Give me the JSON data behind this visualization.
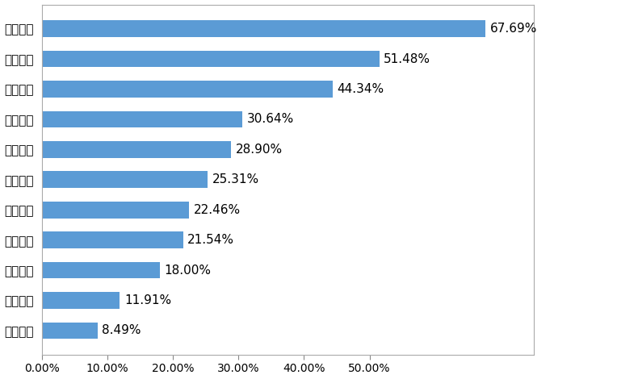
{
  "categories": [
    "法律援助",
    "應急救援",
    "纠纷协调",
    "维护权益",
    "价格指导",
    "困难帮扶",
    "安全教育",
    "事故救济",
    "公益体检",
    "子女就学",
    "就业培训"
  ],
  "values": [
    0.6769,
    0.5148,
    0.4434,
    0.3064,
    0.289,
    0.2531,
    0.2246,
    0.2154,
    0.18,
    0.1191,
    0.0849
  ],
  "labels": [
    "67.69%",
    "51.48%",
    "44.34%",
    "30.64%",
    "28.90%",
    "25.31%",
    "22.46%",
    "21.54%",
    "18.00%",
    "11.91%",
    "8.49%"
  ],
  "bar_color": "#5B9BD5",
  "background_color": "#FFFFFF",
  "xlim": [
    0,
    0.75
  ],
  "xticks": [
    0.0,
    0.1,
    0.2,
    0.3,
    0.4,
    0.5
  ],
  "xtick_labels": [
    "0.00%",
    "10.00%",
    "20.00%",
    "30.00%",
    "40.00%",
    "50.00%"
  ],
  "label_fontsize": 11,
  "tick_fontsize": 10,
  "bar_height": 0.55
}
